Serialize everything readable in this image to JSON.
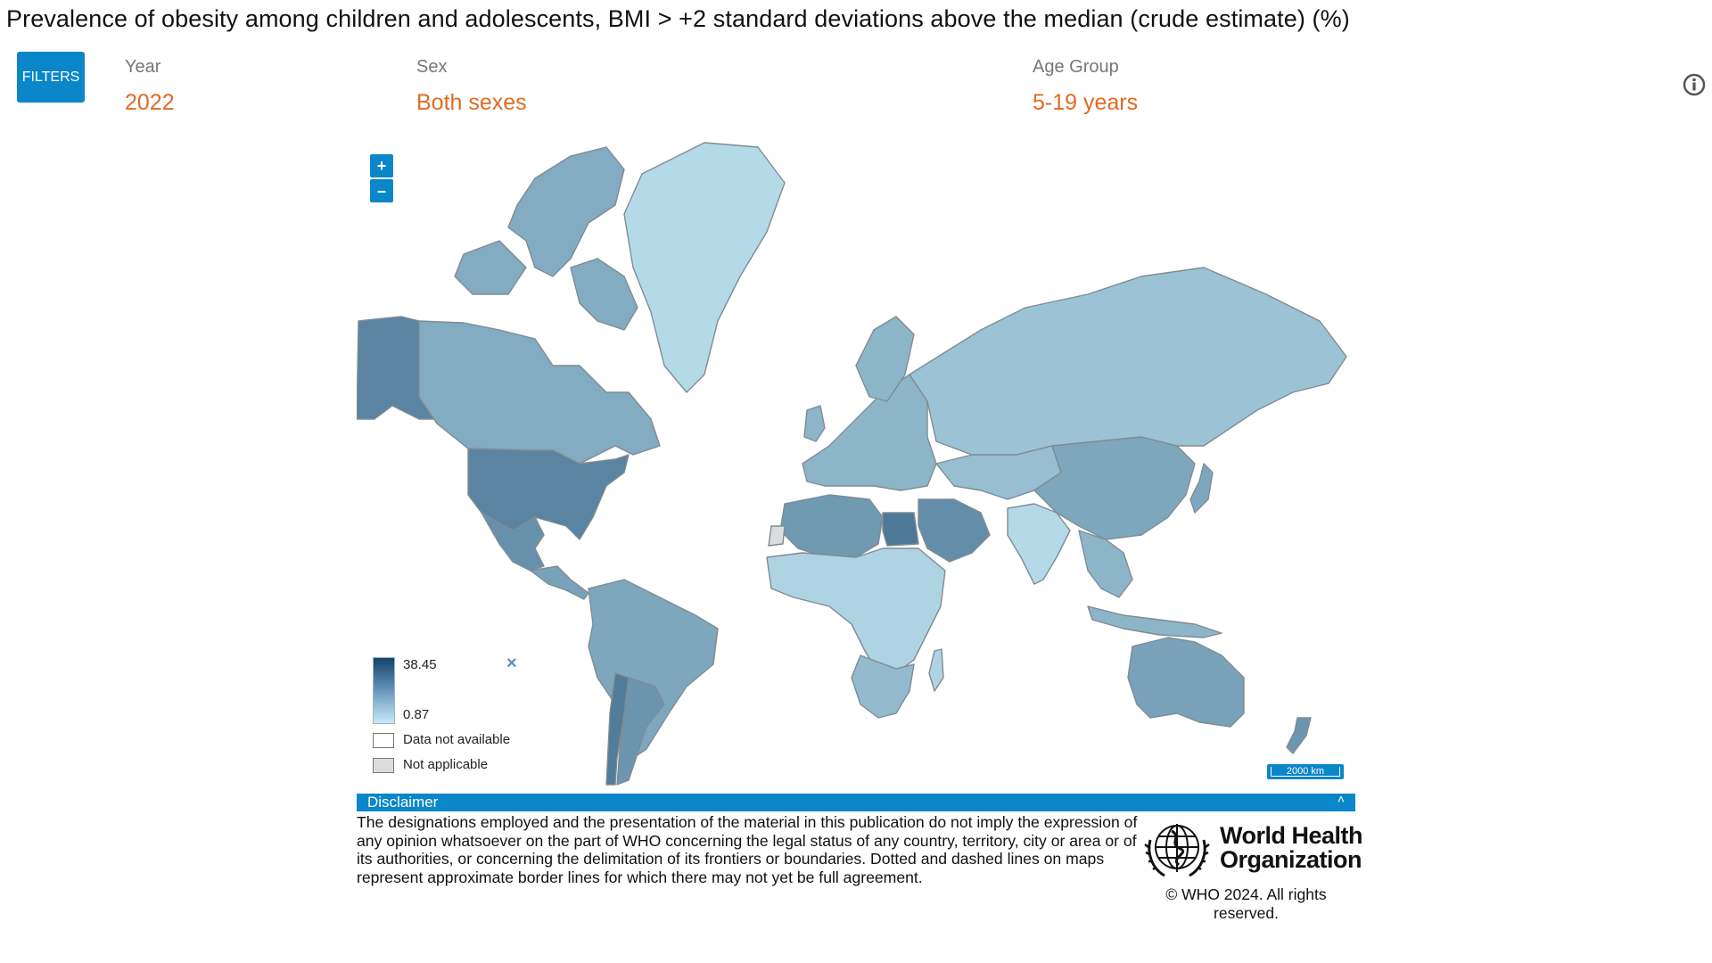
{
  "header": {
    "title": "Prevalence of obesity among children and adolescents, BMI > +2 standard deviations above the median (crude estimate) (%)"
  },
  "filters": {
    "button_label": "FILTERS",
    "items": [
      {
        "label": "Year",
        "value": "2022"
      },
      {
        "label": "Sex",
        "value": "Both sexes"
      },
      {
        "label": "Age Group",
        "value": "5-19 years"
      }
    ]
  },
  "map": {
    "zoom_in_label": "+",
    "zoom_out_label": "–",
    "scale_label": "2000 km",
    "colors": {
      "ocean": "#ffffff",
      "border": "#7f8c94",
      "ramp_low": "#c6ebf6",
      "ramp_high": "#14426a",
      "na": "#ffffff",
      "not_applicable": "#dcdcdc"
    },
    "regions": [
      {
        "name": "Greenland",
        "value": 3.0
      },
      {
        "name": "Canada",
        "value": 12.0
      },
      {
        "name": "Alaska (USA)",
        "value": 21.0
      },
      {
        "name": "United States",
        "value": 21.0
      },
      {
        "name": "Mexico",
        "value": 18.0
      },
      {
        "name": "Central America",
        "value": 14.0
      },
      {
        "name": "South America",
        "value": 13.0
      },
      {
        "name": "Chile",
        "value": 23.0
      },
      {
        "name": "Argentina",
        "value": 17.0
      },
      {
        "name": "Europe",
        "value": 10.0
      },
      {
        "name": "Russia",
        "value": 7.0
      },
      {
        "name": "North Africa",
        "value": 16.0
      },
      {
        "name": "Egypt",
        "value": 24.0
      },
      {
        "name": "Sub-Saharan Africa",
        "value": 4.0
      },
      {
        "name": "Southern Africa",
        "value": 9.0
      },
      {
        "name": "Arabian Peninsula",
        "value": 19.0
      },
      {
        "name": "Central Asia",
        "value": 8.0
      },
      {
        "name": "China",
        "value": 13.0
      },
      {
        "name": "India",
        "value": 3.0
      },
      {
        "name": "Southeast Asia",
        "value": 10.0
      },
      {
        "name": "Australia",
        "value": 14.0
      },
      {
        "name": "New Zealand",
        "value": 17.0
      }
    ]
  },
  "legend": {
    "max": "38.45",
    "min": "0.87",
    "close_label": "×",
    "na_label": "Data not available",
    "not_applicable_label": "Not applicable"
  },
  "disclaimer": {
    "title": "Disclaimer",
    "caret": "˄",
    "text": "The designations employed and the presentation of the material in this publication do not imply the expression of any opinion whatsoever on the part of WHO concerning the legal status of any country, territory, city or area or of its authorities, or concerning the delimitation of its frontiers or boundaries. Dotted and dashed lines on maps represent approximate border lines for which there may not yet be full agreement."
  },
  "footer": {
    "org_name_line1": "World Health",
    "org_name_line2": "Organization",
    "copyright": "© WHO 2024. All rights reserved."
  }
}
